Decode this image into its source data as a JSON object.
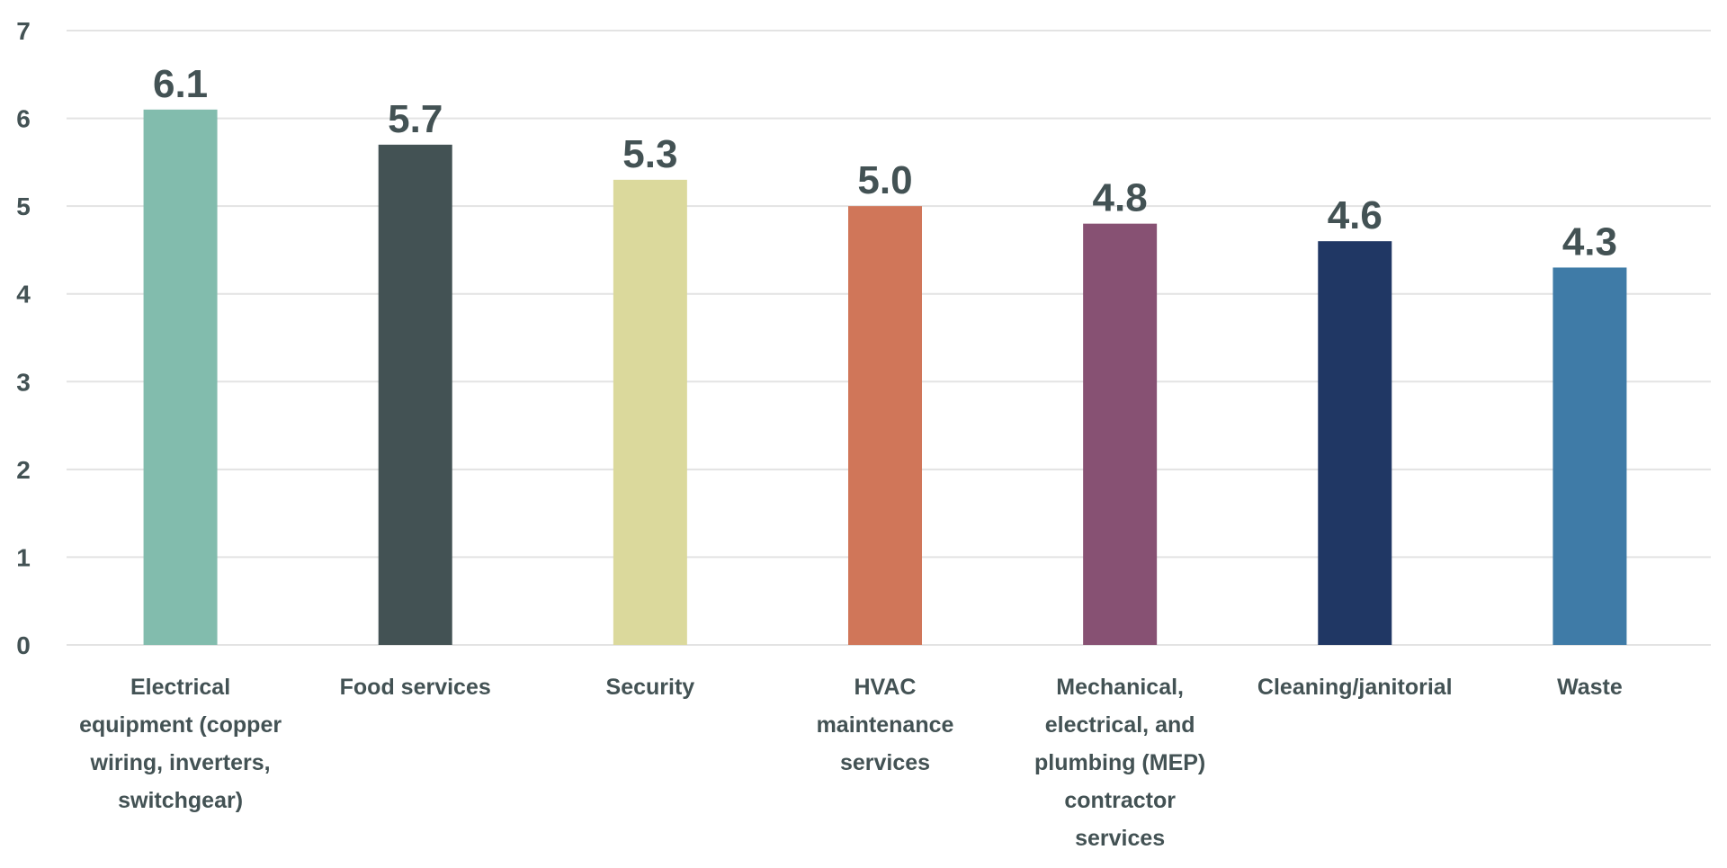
{
  "chart_data": {
    "type": "bar",
    "title": "",
    "xlabel": "",
    "ylabel": "",
    "ylim": [
      0,
      7
    ],
    "yticks": [
      "0",
      "1",
      "2",
      "3",
      "4",
      "5",
      "6",
      "7"
    ],
    "grid": true,
    "legend": "none",
    "categories": [
      [
        "Electrical",
        "equipment (copper",
        "wiring, inverters,",
        "switchgear)"
      ],
      [
        "Food services"
      ],
      [
        "Security"
      ],
      [
        "HVAC",
        "maintenance",
        "services"
      ],
      [
        "Mechanical,",
        "electrical, and",
        "plumbing (MEP)",
        "contractor",
        "services"
      ],
      [
        "Cleaning/janitorial"
      ],
      [
        "Waste"
      ]
    ],
    "values": [
      6.1,
      5.7,
      5.3,
      5.0,
      4.8,
      4.6,
      4.3
    ],
    "data_labels": [
      "6.1",
      "5.7",
      "5.3",
      "5.0",
      "4.8",
      "4.6",
      "4.3"
    ],
    "colors": [
      "#82bcad",
      "#435254",
      "#dbd99c",
      "#d07659",
      "#875173",
      "#203764",
      "#3f7ba7"
    ],
    "text_color": "#435254",
    "grid_color": "#e3e3e3"
  }
}
